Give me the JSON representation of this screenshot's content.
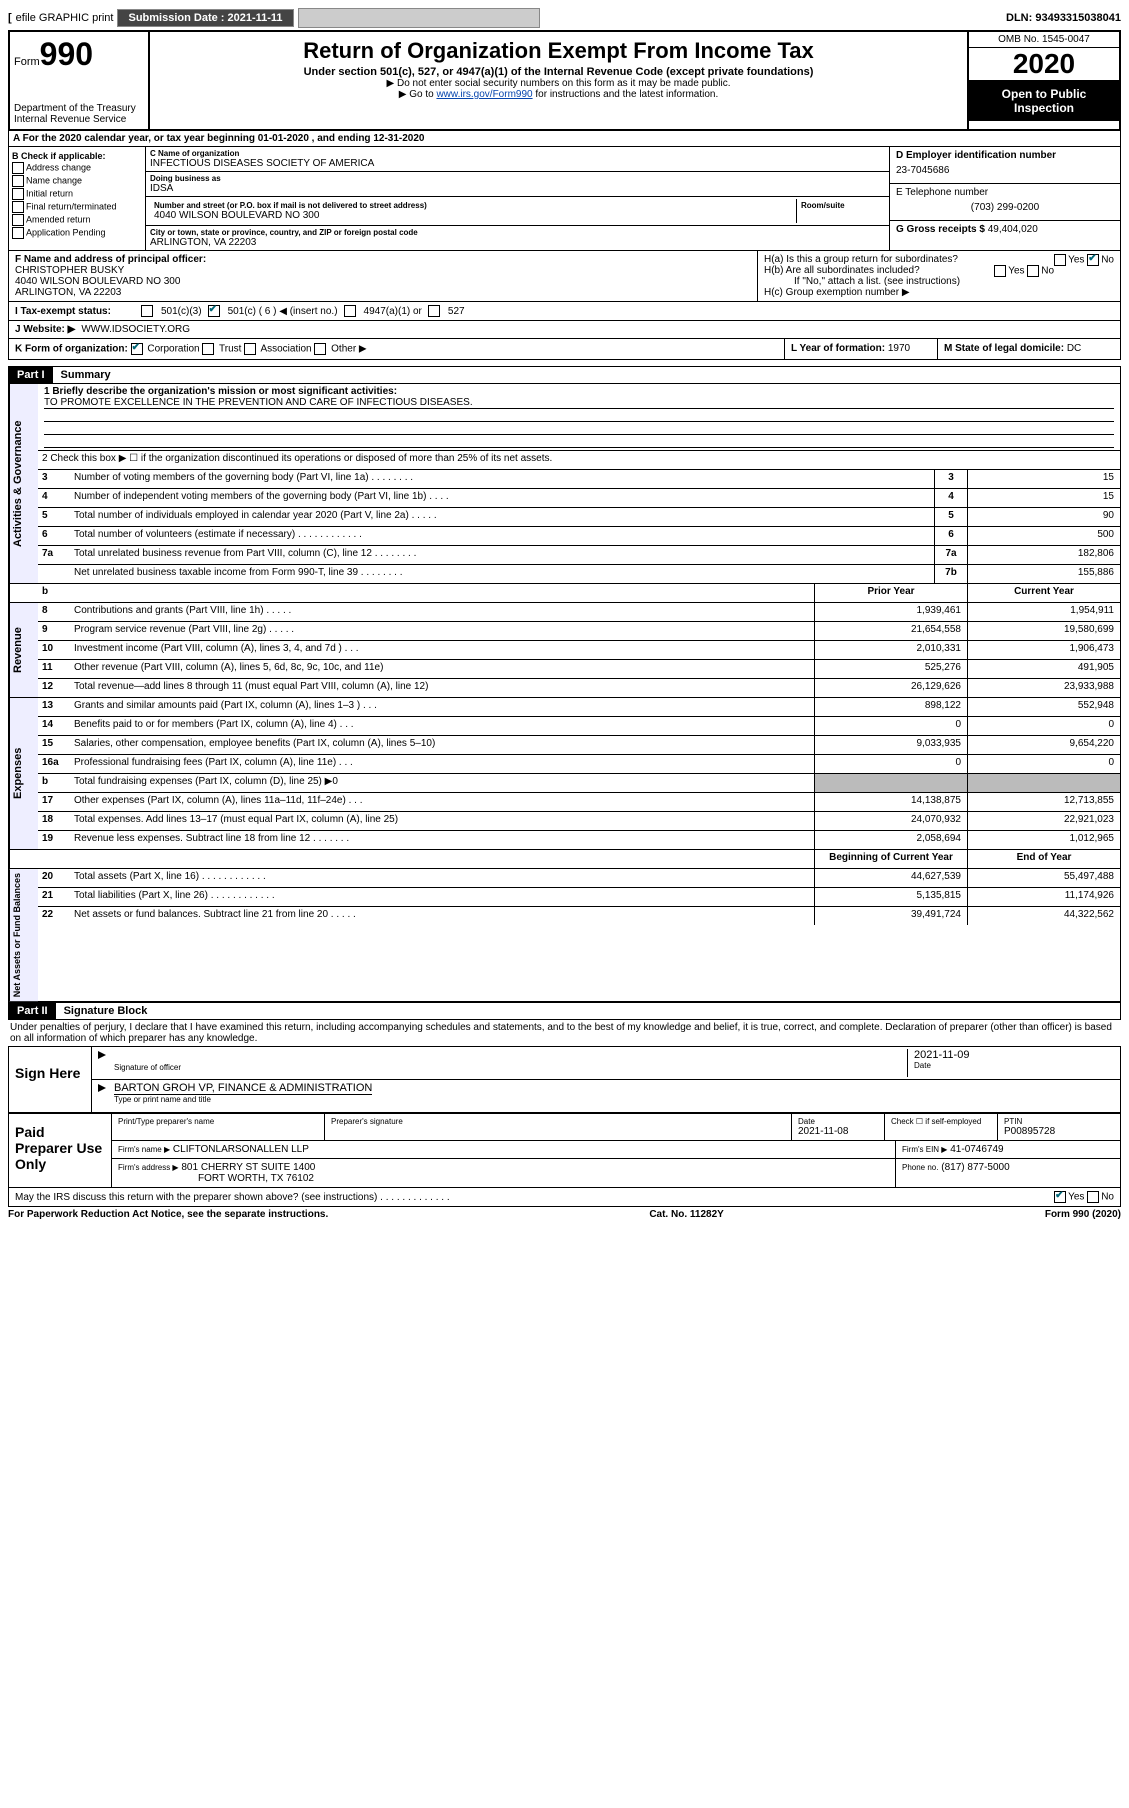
{
  "topbar": {
    "efile": "efile GRAPHIC print",
    "submission_label": "Submission Date : 2021-11-11",
    "dln": "DLN: 93493315038041"
  },
  "header": {
    "form_label": "Form",
    "form_num": "990",
    "dept": "Department of the Treasury\nInternal Revenue Service",
    "title": "Return of Organization Exempt From Income Tax",
    "subtitle": "Under section 501(c), 527, or 4947(a)(1) of the Internal Revenue Code (except private foundations)",
    "note1": "▶ Do not enter social security numbers on this form as it may be made public.",
    "note2_pre": "▶ Go to ",
    "note2_link": "www.irs.gov/Form990",
    "note2_post": " for instructions and the latest information.",
    "omb": "OMB No. 1545-0047",
    "year": "2020",
    "open": "Open to Public Inspection"
  },
  "section_a": "A For the 2020 calendar year, or tax year beginning 01-01-2020     , and ending 12-31-2020",
  "box_b": {
    "label": "B Check if applicable:",
    "items": [
      "Address change",
      "Name change",
      "Initial return",
      "Final return/terminated",
      "Amended return",
      "Application Pending"
    ]
  },
  "box_c": {
    "name_lbl": "C Name of organization",
    "name": "INFECTIOUS DISEASES SOCIETY OF AMERICA",
    "dba_lbl": "Doing business as",
    "dba": "IDSA",
    "addr_lbl": "Number and street (or P.O. box if mail is not delivered to street address)",
    "suite_lbl": "Room/suite",
    "addr": "4040 WILSON BOULEVARD NO 300",
    "city_lbl": "City or town, state or province, country, and ZIP or foreign postal code",
    "city": "ARLINGTON, VA  22203"
  },
  "box_d": {
    "lbl": "D Employer identification number",
    "val": "23-7045686"
  },
  "box_e": {
    "lbl": "E Telephone number",
    "val": "(703) 299-0200"
  },
  "box_g": {
    "lbl": "G Gross receipts $",
    "val": "49,404,020"
  },
  "box_f": {
    "lbl": "F Name and address of principal officer:",
    "name": "CHRISTOPHER BUSKY",
    "addr": "4040 WILSON BOULEVARD NO 300\nARLINGTON, VA  22203"
  },
  "box_h": {
    "ha": "H(a)  Is this a group return for subordinates?",
    "hb": "H(b)  Are all subordinates included?",
    "hb_note": "If \"No,\" attach a list. (see instructions)",
    "hc": "H(c)  Group exemption number ▶",
    "yes": "Yes",
    "no": "No"
  },
  "box_i": {
    "lbl": "I  Tax-exempt status:",
    "c3": "501(c)(3)",
    "c": "501(c) ( 6 ) ◀ (insert no.)",
    "a4947": "4947(a)(1) or",
    "s527": "527"
  },
  "box_j": {
    "lbl": "J   Website: ▶",
    "val": "WWW.IDSOCIETY.ORG"
  },
  "box_k": {
    "lbl": "K Form of organization:",
    "corp": "Corporation",
    "trust": "Trust",
    "assoc": "Association",
    "other": "Other ▶"
  },
  "box_l": {
    "lbl": "L Year of formation:",
    "val": "1970"
  },
  "box_m": {
    "lbl": "M State of legal domicile:",
    "val": "DC"
  },
  "part1": {
    "hdr": "Part I",
    "title": "Summary"
  },
  "summary": {
    "activities_governance": {
      "label": "Activities & Governance",
      "l1_lbl": "1  Briefly describe the organization's mission or most significant activities:",
      "l1_val": "TO PROMOTE EXCELLENCE IN THE PREVENTION AND CARE OF INFECTIOUS DISEASES.",
      "l2": "2    Check this box ▶ ☐  if the organization discontinued its operations or disposed of more than 25% of its net assets.",
      "rows": [
        {
          "n": "3",
          "d": "Number of voting members of the governing body (Part VI, line 1a)   .    .    .    .    .    .    .    .",
          "box": "3",
          "v": "15"
        },
        {
          "n": "4",
          "d": "Number of independent voting members of the governing body (Part VI, line 1b)    .    .    .    .",
          "box": "4",
          "v": "15"
        },
        {
          "n": "5",
          "d": "Total number of individuals employed in calendar year 2020 (Part V, line 2a)   .    .    .    .    .",
          "box": "5",
          "v": "90"
        },
        {
          "n": "6",
          "d": "Total number of volunteers (estimate if necessary)   .    .    .    .    .    .    .    .    .    .    .    .",
          "box": "6",
          "v": "500"
        },
        {
          "n": "7a",
          "d": "Total unrelated business revenue from Part VIII, column (C), line 12   .    .    .    .    .    .    .    .",
          "box": "7a",
          "v": "182,806"
        },
        {
          "n": "",
          "d": "Net unrelated business taxable income from Form 990-T, line 39    .    .    .    .    .    .    .    .",
          "box": "7b",
          "v": "155,886"
        }
      ]
    },
    "two_col_hdr": {
      "prior": "Prior Year",
      "current": "Current Year"
    },
    "revenue": {
      "label": "Revenue",
      "rows": [
        {
          "n": "8",
          "d": "Contributions and grants (Part VIII, line 1h)   .    .    .    .    .",
          "p": "1,939,461",
          "c": "1,954,911"
        },
        {
          "n": "9",
          "d": "Program service revenue (Part VIII, line 2g)   .    .    .    .    .",
          "p": "21,654,558",
          "c": "19,580,699"
        },
        {
          "n": "10",
          "d": "Investment income (Part VIII, column (A), lines 3, 4, and 7d )   .    .    .",
          "p": "2,010,331",
          "c": "1,906,473"
        },
        {
          "n": "11",
          "d": "Other revenue (Part VIII, column (A), lines 5, 6d, 8c, 9c, 10c, and 11e)",
          "p": "525,276",
          "c": "491,905"
        },
        {
          "n": "12",
          "d": "Total revenue—add lines 8 through 11 (must equal Part VIII, column (A), line 12)",
          "p": "26,129,626",
          "c": "23,933,988"
        }
      ]
    },
    "expenses": {
      "label": "Expenses",
      "rows": [
        {
          "n": "13",
          "d": "Grants and similar amounts paid (Part IX, column (A), lines 1–3 )    .    .    .",
          "p": "898,122",
          "c": "552,948"
        },
        {
          "n": "14",
          "d": "Benefits paid to or for members (Part IX, column (A), line 4)   .    .    .",
          "p": "0",
          "c": "0"
        },
        {
          "n": "15",
          "d": "Salaries, other compensation, employee benefits (Part IX, column (A), lines 5–10)",
          "p": "9,033,935",
          "c": "9,654,220"
        },
        {
          "n": "16a",
          "d": "Professional fundraising fees (Part IX, column (A), line 11e)   .    .    .",
          "p": "0",
          "c": "0"
        },
        {
          "n": "b",
          "d": "Total fundraising expenses (Part IX, column (D), line 25) ▶0",
          "p": "",
          "c": "",
          "grey": true
        },
        {
          "n": "17",
          "d": "Other expenses (Part IX, column (A), lines 11a–11d, 11f–24e)    .    .    .",
          "p": "14,138,875",
          "c": "12,713,855"
        },
        {
          "n": "18",
          "d": "Total expenses. Add lines 13–17 (must equal Part IX, column (A), line 25)",
          "p": "24,070,932",
          "c": "22,921,023"
        },
        {
          "n": "19",
          "d": "Revenue less expenses. Subtract line 18 from line 12   .    .    .    .    .    .    .",
          "p": "2,058,694",
          "c": "1,012,965"
        }
      ]
    },
    "bal_hdr": {
      "begin": "Beginning of Current Year",
      "end": "End of Year"
    },
    "netassets": {
      "label": "Net Assets or Fund Balances",
      "rows": [
        {
          "n": "20",
          "d": "Total assets (Part X, line 16)    .    .    .    .    .    .    .    .    .    .    .    .",
          "p": "44,627,539",
          "c": "55,497,488"
        },
        {
          "n": "21",
          "d": "Total liabilities (Part X, line 26)   .    .    .    .    .    .    .    .    .    .    .    .",
          "p": "5,135,815",
          "c": "11,174,926"
        },
        {
          "n": "22",
          "d": "Net assets or fund balances. Subtract line 21 from line 20   .    .    .    .    .",
          "p": "39,491,724",
          "c": "44,322,562"
        }
      ]
    }
  },
  "part2": {
    "hdr": "Part II",
    "title": "Signature Block"
  },
  "perjury": "Under penalties of perjury, I declare that I have examined this return, including accompanying schedules and statements, and to the best of my knowledge and belief, it is true, correct, and complete. Declaration of preparer (other than officer) is based on all information of which preparer has any knowledge.",
  "sign": {
    "lbl": "Sign Here",
    "sig_lbl": "Signature of officer",
    "date_lbl": "Date",
    "date": "2021-11-09",
    "name": "BARTON GROH VP, FINANCE & ADMINISTRATION",
    "name_lbl": "Type or print name and title"
  },
  "preparer": {
    "lbl": "Paid Preparer Use Only",
    "h_name": "Print/Type preparer's name",
    "h_sig": "Preparer's signature",
    "h_date": "Date",
    "date": "2021-11-08",
    "h_check": "Check ☐ if self-employed",
    "h_ptin": "PTIN",
    "ptin": "P00895728",
    "firm_lbl": "Firm's name    ▶",
    "firm": "CLIFTONLARSONALLEN LLP",
    "ein_lbl": "Firm's EIN ▶",
    "ein": "41-0746749",
    "addr_lbl": "Firm's address ▶",
    "addr1": "801 CHERRY ST SUITE 1400",
    "addr2": "FORT WORTH, TX  76102",
    "phone_lbl": "Phone no.",
    "phone": "(817) 877-5000"
  },
  "discuss": "May the IRS discuss this return with the preparer shown above? (see instructions)    .    .    .    .    .    .    .    .    .    .    .    .    .",
  "footer": {
    "paperwork": "For Paperwork Reduction Act Notice, see the separate instructions.",
    "cat": "Cat. No. 11282Y",
    "form": "Form 990 (2020)"
  }
}
